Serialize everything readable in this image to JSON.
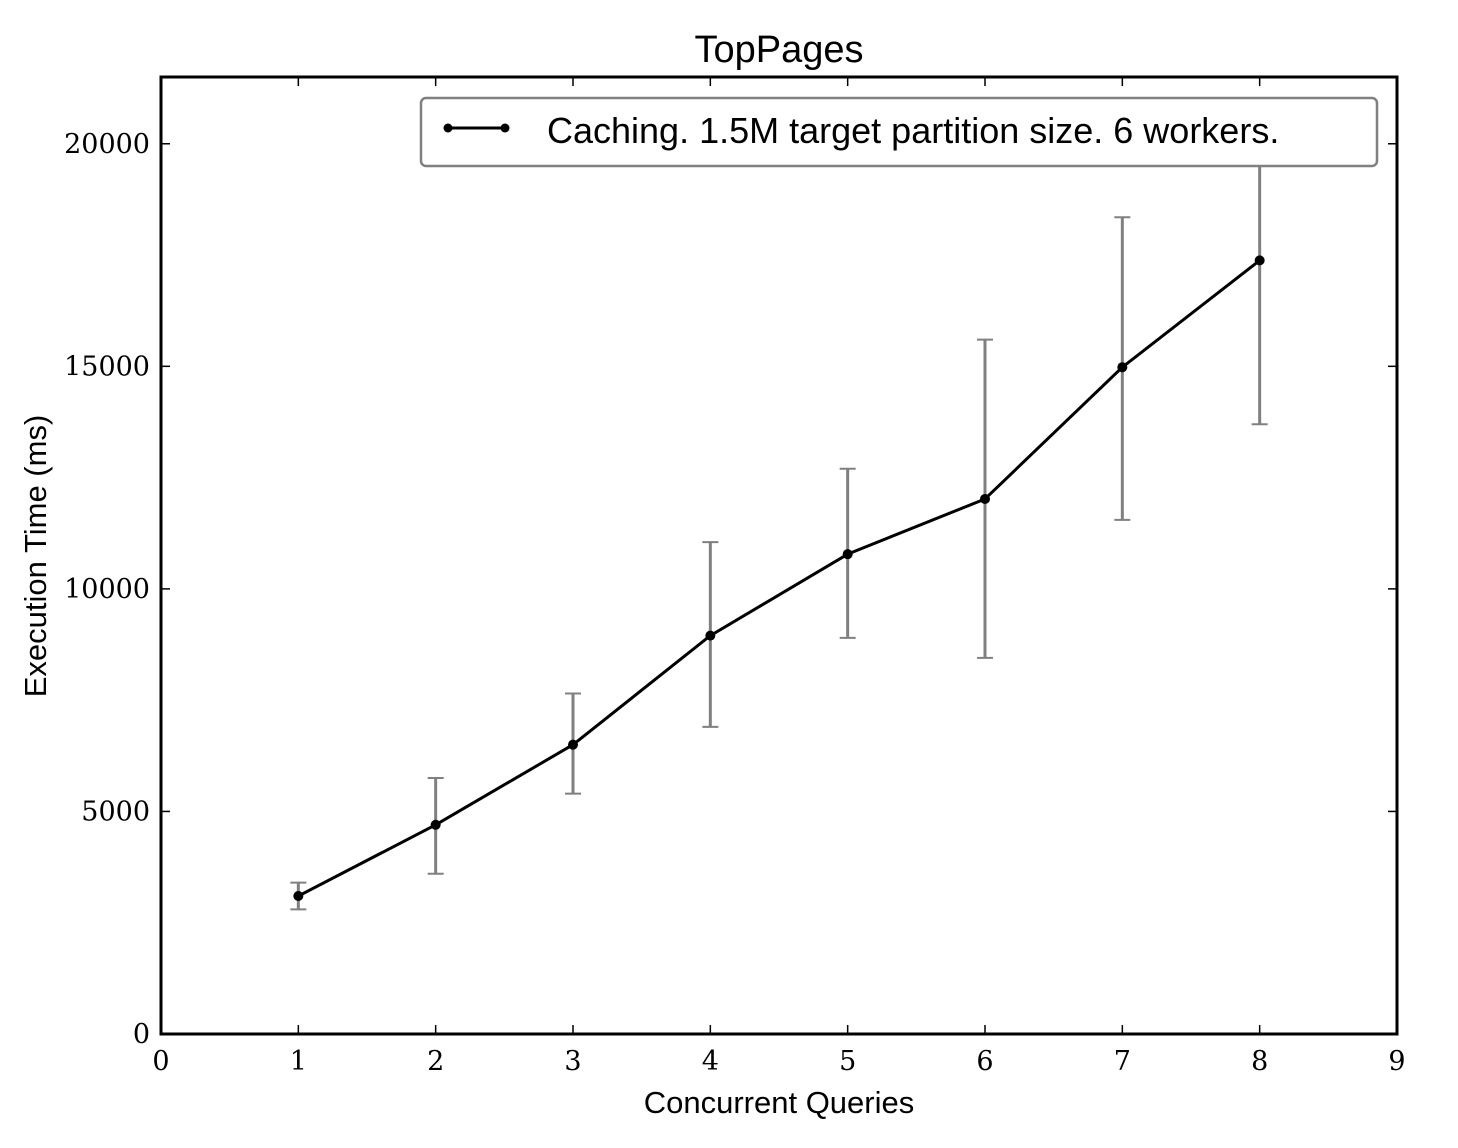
{
  "chart_data": {
    "type": "line",
    "title": "TopPages",
    "xlabel": "Concurrent Queries",
    "ylabel": "Execution Time (ms)",
    "xlim": [
      0,
      9
    ],
    "ylim": [
      0,
      21500
    ],
    "xticks": [
      0,
      1,
      2,
      3,
      4,
      5,
      6,
      7,
      8,
      9
    ],
    "yticks": [
      0,
      5000,
      10000,
      15000,
      20000
    ],
    "xtick_labels": [
      "0",
      "1",
      "2",
      "3",
      "4",
      "5",
      "6",
      "7",
      "8",
      "9"
    ],
    "ytick_labels": [
      "0",
      "5000",
      "10000",
      "15000",
      "20000"
    ],
    "grid": false,
    "legend_position": "top-right",
    "series": [
      {
        "name": "Caching. 1.5M target partition size. 6 workers.",
        "color": "#000000",
        "errorbar_color": "#808080",
        "x": [
          1,
          2,
          3,
          4,
          5,
          6,
          7,
          8
        ],
        "y": [
          3100,
          4700,
          6500,
          8950,
          10780,
          12020,
          14980,
          17380
        ],
        "error_low": [
          2800,
          3600,
          5400,
          6900,
          8900,
          8450,
          11550,
          13700
        ],
        "error_high": [
          3400,
          5750,
          7650,
          11050,
          12700,
          15600,
          18350,
          21000
        ]
      }
    ]
  }
}
